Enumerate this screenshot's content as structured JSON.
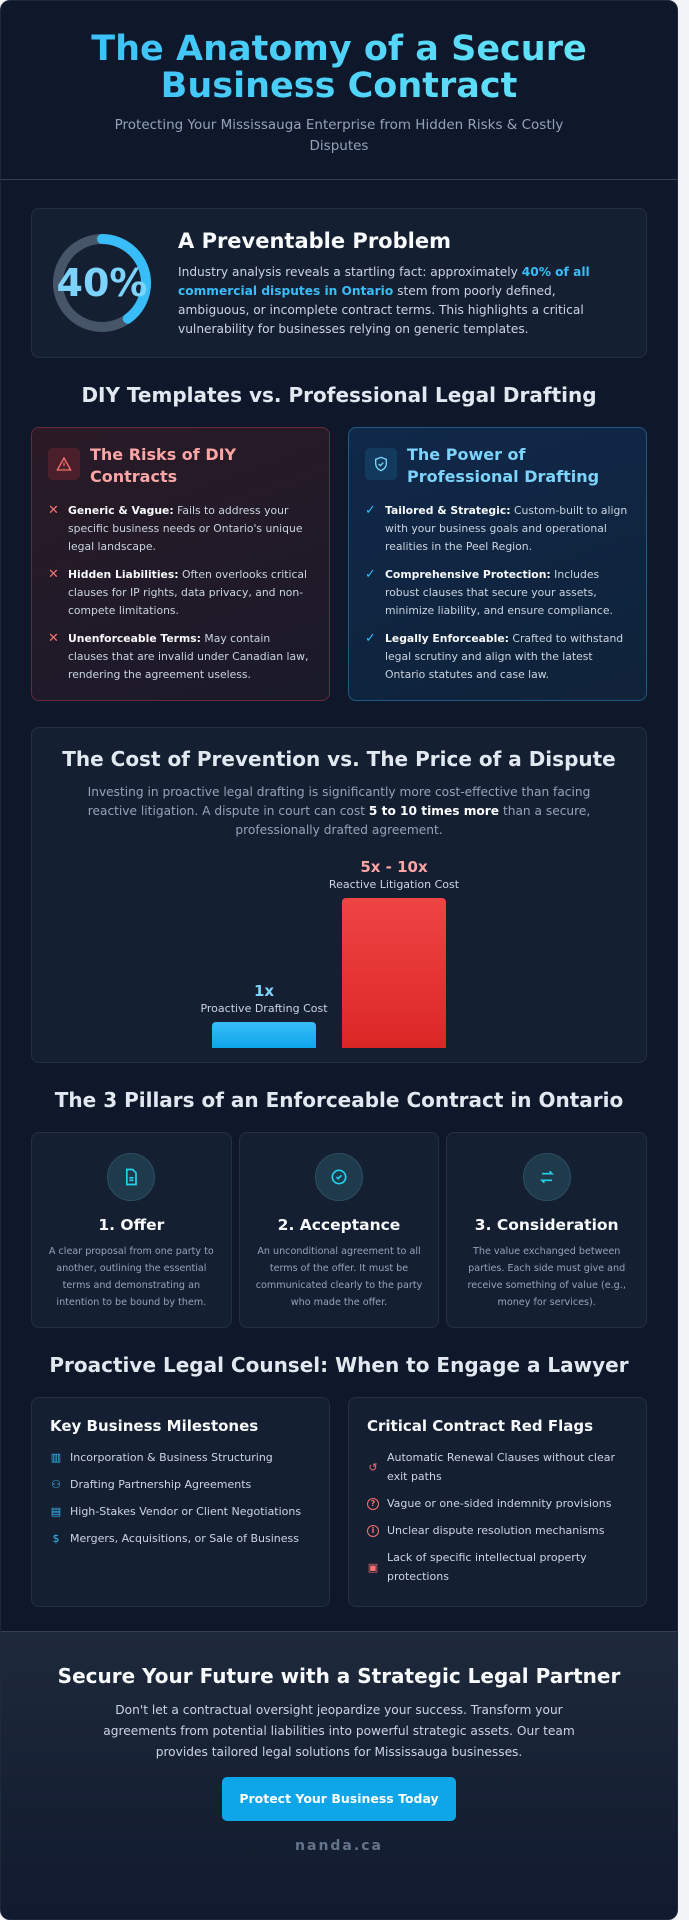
{
  "hero": {
    "title": "The Anatomy of a Secure Business Contract",
    "subtitle": "Protecting Your Mississauga Enterprise from Hidden Risks & Costly Disputes"
  },
  "stat": {
    "value": "40%",
    "percent": 40,
    "heading": "A Preventable Problem",
    "text_before": "Industry analysis reveals a startling fact: approximately ",
    "highlight": "40% of all commercial disputes in Ontario",
    "text_after": " stem from poorly defined, ambiguous, or incomplete contract terms. This highlights a critical vulnerability for businesses relying on generic templates."
  },
  "compare": {
    "heading": "DIY Templates vs. Professional Legal Drafting",
    "diy": {
      "title": "The Risks of DIY Contracts",
      "icon": "warning-triangle-icon",
      "items": [
        {
          "label": "Generic & Vague:",
          "text": " Fails to address your specific business needs or Ontario's unique legal landscape."
        },
        {
          "label": "Hidden Liabilities:",
          "text": " Often overlooks critical clauses for IP rights, data privacy, and non-compete limitations."
        },
        {
          "label": "Unenforceable Terms:",
          "text": " May contain clauses that are invalid under Canadian law, rendering the agreement useless."
        }
      ]
    },
    "pro": {
      "title": "The Power of Professional Drafting",
      "icon": "shield-check-icon",
      "items": [
        {
          "label": "Tailored & Strategic:",
          "text": " Custom-built to align with your business goals and operational realities in the Peel Region."
        },
        {
          "label": "Comprehensive Protection:",
          "text": " Includes robust clauses that secure your assets, minimize liability, and ensure compliance."
        },
        {
          "label": "Legally Enforceable:",
          "text": " Crafted to withstand legal scrutiny and align with the latest Ontario statutes and case law."
        }
      ]
    }
  },
  "cost": {
    "heading": "The Cost of Prevention vs. The Price of a Dispute",
    "text_before": "Investing in proactive legal drafting is significantly more cost-effective than facing reactive litigation. A dispute in court can cost ",
    "bold": "5 to 10 times more",
    "text_after": " than a secure, professionally drafted agreement."
  },
  "chart_data": {
    "type": "bar",
    "categories": [
      "Proactive Drafting Cost",
      "Reactive Litigation Cost"
    ],
    "value_labels": [
      "1x",
      "5x - 10x"
    ],
    "values": [
      1,
      6.5
    ],
    "colors": [
      "#0ea5e9",
      "#ef4444"
    ]
  },
  "pillars": {
    "heading": "The 3 Pillars of an Enforceable Contract in Ontario",
    "items": [
      {
        "title": "1. Offer",
        "icon": "document-icon",
        "text": "A clear proposal from one party to another, outlining the essential terms and demonstrating an intention to be bound by them."
      },
      {
        "title": "2. Acceptance",
        "icon": "check-circle-icon",
        "text": "An unconditional agreement to all terms of the offer. It must be communicated clearly to the party who made the offer."
      },
      {
        "title": "3. Consideration",
        "icon": "exchange-arrows-icon",
        "text": "The value exchanged between parties. Each side must give and receive something of value (e.g., money for services)."
      }
    ]
  },
  "counsel": {
    "heading": "Proactive Legal Counsel: When to Engage a Lawyer",
    "milestones": {
      "title": "Key Business Milestones",
      "items": [
        {
          "icon": "building-icon",
          "text": "Incorporation & Business Structuring"
        },
        {
          "icon": "users-icon",
          "text": "Drafting Partnership Agreements"
        },
        {
          "icon": "file-icon",
          "text": "High-Stakes Vendor or Client Negotiations"
        },
        {
          "icon": "dollar-icon",
          "text": "Mergers, Acquisitions, or Sale of Business"
        }
      ]
    },
    "flags": {
      "title": "Critical Contract Red Flags",
      "items": [
        {
          "icon": "renew-icon",
          "text": "Automatic Renewal Clauses without clear exit paths"
        },
        {
          "icon": "question-icon",
          "text": "Vague or one-sided indemnity provisions"
        },
        {
          "icon": "info-icon",
          "text": "Unclear dispute resolution mechanisms"
        },
        {
          "icon": "lock-icon",
          "text": "Lack of specific intellectual property protections"
        }
      ]
    }
  },
  "cta": {
    "heading": "Secure Your Future with a Strategic Legal Partner",
    "text": "Don't let a contractual oversight jeopardize your success. Transform your agreements from potential liabilities into powerful strategic assets. Our team provides tailored legal solutions for Mississauga businesses.",
    "button": "Protect Your Business Today",
    "brand": "nanda.ca"
  },
  "colors": {
    "accent": "#38bdf8",
    "danger": "#f87171",
    "background": "#0f172a"
  }
}
